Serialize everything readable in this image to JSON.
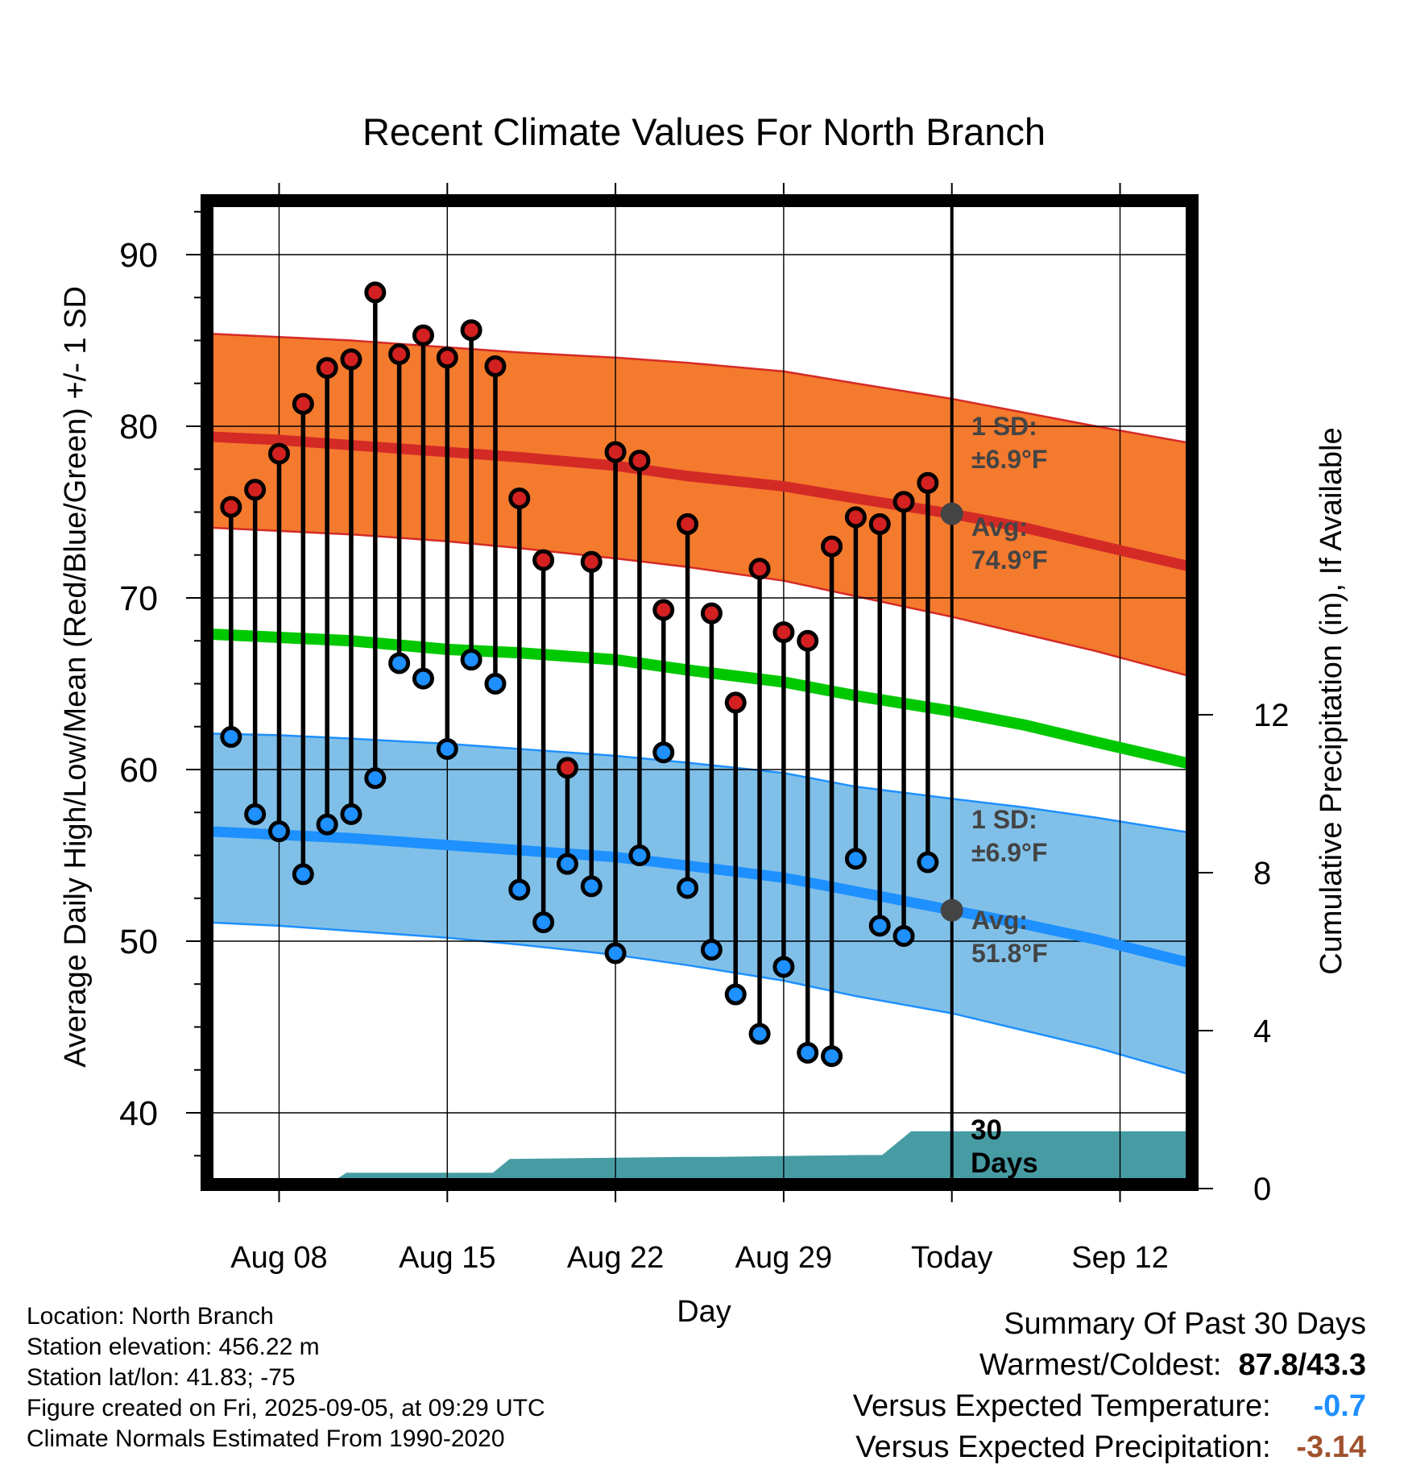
{
  "chart_data": {
    "type": "line",
    "title": "Recent Climate Values For North Branch",
    "xlabel": "Day",
    "ylabel_left": "Average Daily High/Low/Mean (Red/Blue/Green) +/- 1 SD",
    "ylabel_right": "Cumulative Precipitation (in), If Available",
    "x_range": [
      "Aug 05",
      "Sep 15"
    ],
    "x_ticks": [
      {
        "day": 8,
        "label": "Aug 08"
      },
      {
        "day": 15,
        "label": "Aug 15"
      },
      {
        "day": 22,
        "label": "Aug 22"
      },
      {
        "day": 29,
        "label": "Aug 29"
      },
      {
        "day": 36,
        "label": "Today"
      },
      {
        "day": 43,
        "label": "Sep 12"
      }
    ],
    "ylim_left": [
      35.5,
      93
    ],
    "y_ticks_left": [
      40,
      50,
      60,
      70,
      80,
      90
    ],
    "ylim_right": [
      0,
      24
    ],
    "y_ticks_right": [
      0,
      4,
      8,
      12
    ],
    "today_day": 36,
    "today_label": "Today",
    "days_label_line1": "30",
    "days_label_line2": "Days",
    "grid": true,
    "normals": {
      "days": [
        5,
        8,
        11,
        15,
        18,
        22,
        25,
        29,
        32,
        36,
        39,
        42,
        46
      ],
      "high_mean": [
        79.4,
        79.2,
        78.9,
        78.5,
        78.2,
        77.7,
        77.1,
        76.5,
        75.8,
        74.9,
        74.1,
        73.1,
        71.8
      ],
      "high_upper": [
        85.4,
        85.2,
        85.0,
        84.6,
        84.3,
        84.0,
        83.7,
        83.2,
        82.5,
        81.6,
        80.8,
        80.0,
        79.0
      ],
      "high_lower": [
        74.1,
        73.9,
        73.7,
        73.3,
        72.9,
        72.3,
        71.8,
        71.0,
        70.1,
        68.9,
        67.9,
        66.9,
        65.4
      ],
      "mean": [
        67.9,
        67.7,
        67.5,
        67.0,
        66.8,
        66.4,
        65.8,
        65.1,
        64.3,
        63.4,
        62.6,
        61.6,
        60.3
      ],
      "low_mean": [
        56.4,
        56.2,
        56.0,
        55.6,
        55.3,
        54.9,
        54.4,
        53.7,
        52.9,
        51.8,
        51.0,
        50.1,
        48.7
      ],
      "low_upper": [
        62.1,
        62.0,
        61.8,
        61.5,
        61.2,
        60.8,
        60.4,
        59.8,
        59.0,
        58.3,
        57.8,
        57.2,
        56.3
      ],
      "low_lower": [
        51.1,
        50.9,
        50.6,
        50.2,
        49.8,
        49.2,
        48.6,
        47.7,
        46.8,
        45.8,
        44.8,
        43.8,
        42.2
      ]
    },
    "observed": {
      "days": [
        6,
        7,
        8,
        9,
        10,
        11,
        12,
        13,
        14,
        15,
        16,
        17,
        18,
        19,
        20,
        21,
        22,
        23,
        24,
        25,
        26,
        27,
        28,
        29,
        30,
        31,
        32,
        33,
        34,
        35
      ],
      "high": [
        75.3,
        76.3,
        78.4,
        81.3,
        83.4,
        83.9,
        87.8,
        84.2,
        85.3,
        84.0,
        85.6,
        83.5,
        75.8,
        72.2,
        60.1,
        72.1,
        78.5,
        78.0,
        69.3,
        74.3,
        69.1,
        63.9,
        71.7,
        68.0,
        67.5,
        73.0,
        74.7,
        74.3,
        75.6,
        76.7
      ],
      "low": [
        61.9,
        57.4,
        56.4,
        53.9,
        56.8,
        57.4,
        59.5,
        66.2,
        65.3,
        61.2,
        66.4,
        65.0,
        53.0,
        51.1,
        54.5,
        53.2,
        49.3,
        55.0,
        61.0,
        53.1,
        49.5,
        46.9,
        44.6,
        48.5,
        43.5,
        43.3,
        54.8,
        50.9,
        50.3,
        54.6
      ]
    },
    "precipitation": {
      "days": [
        5,
        9.8,
        10.8,
        11.6,
        16.9,
        17.6,
        24.9,
        26.2,
        32.2,
        33.1,
        34.3,
        46
      ],
      "values": [
        0,
        0,
        0.4,
        0.4,
        0.4,
        0.75,
        0.8,
        0.8,
        0.85,
        0.85,
        1.45,
        1.45
      ]
    },
    "annotations": {
      "high_sd_line1": "1 SD:",
      "high_sd_line2": "±6.9°F",
      "high_avg_line1": "Avg:",
      "high_avg_line2": "74.9°F",
      "low_sd_line1": "1 SD:",
      "low_sd_line2": "±6.9°F",
      "low_avg_line1": "Avg:",
      "low_avg_line2": "51.8°F",
      "today_high_avg": 74.9,
      "today_low_avg": 51.8
    },
    "colors": {
      "high_band": "#f47a2e",
      "high_line": "#d42a26",
      "mean_line": "#00c800",
      "low_band": "#80c0e8",
      "low_line": "#1e90ff",
      "precip": "#479ca4",
      "high_marker": "#d32020",
      "low_marker": "#1e90ff",
      "annotation": "#444444"
    }
  },
  "footer": {
    "location": "Location: North Branch",
    "elevation": "Station elevation: 456.22 m",
    "latlon": "Station lat/lon: 41.83; -75",
    "created": "Figure created on Fri, 2025-09-05, at 09:29 UTC",
    "normals": "Climate Normals Estimated From 1990-2020"
  },
  "summary": {
    "heading": "Summary Of Past 30 Days",
    "warmest_label": "Warmest/Coldest:",
    "warmest_value": "87.8/43.3",
    "temp_label": "Versus Expected Temperature:",
    "temp_value": "-0.7",
    "temp_color": "#1e90ff",
    "precip_label": "Versus Expected Precipitation:",
    "precip_value": "-3.14",
    "precip_color": "#a0522d"
  }
}
